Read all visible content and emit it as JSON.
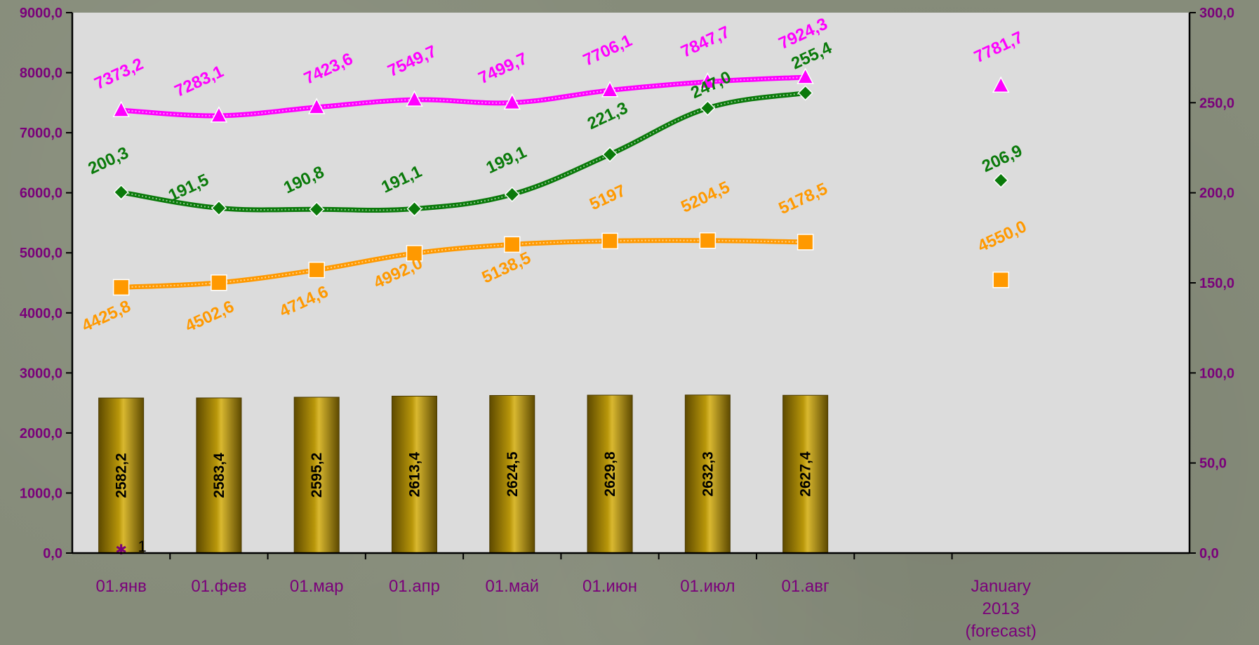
{
  "chart_data": {
    "type": "bar",
    "categories": [
      "01.янв",
      "01.фев",
      "01.мар",
      "01.апр",
      "01.май",
      "01.июн",
      "01.июл",
      "01.авг",
      "",
      [
        "January",
        "2013",
        "(forecast)"
      ]
    ],
    "y_left": {
      "ticks": [
        "0,0",
        "1000,0",
        "2000,0",
        "3000,0",
        "4000,0",
        "5000,0",
        "6000,0",
        "7000,0",
        "8000,0",
        "9000,0"
      ],
      "range": [
        0,
        9000
      ]
    },
    "y_right": {
      "ticks": [
        "0,0",
        "50,0",
        "100,0",
        "150,0",
        "200,0",
        "250,0",
        "300,0"
      ],
      "range": [
        0,
        300
      ]
    },
    "grid": false,
    "colors": {
      "plot_bg": "#dcdcdc",
      "axis": "#000000",
      "tick_text": "#7a007a"
    },
    "series": [
      {
        "type": "bar",
        "axis": "left",
        "color": "#b8960a",
        "values": [
          2582.2,
          2583.4,
          2595.2,
          2613.4,
          2624.5,
          2629.8,
          2632.3,
          2627.4,
          null,
          null
        ],
        "labels": [
          "2582,2",
          "2583,4",
          "2595,2",
          "2613,4",
          "2624,5",
          "2629,8",
          "2632,3",
          "2627,4",
          "",
          ""
        ]
      },
      {
        "type": "line",
        "axis": "left",
        "marker": "triangle",
        "color": "#ff00ff",
        "values": [
          7373.2,
          7283.1,
          7423.6,
          7549.7,
          7499.7,
          7706.1,
          7847.7,
          7924.3,
          null,
          7781.7
        ],
        "labels": [
          "7373,2",
          "7283,1",
          "7423,6",
          "7549,7",
          "7499,7",
          "7706,1",
          "7847,7",
          "7924,3",
          "",
          "7781,7"
        ]
      },
      {
        "type": "line",
        "axis": "right",
        "marker": "diamond",
        "color": "#0a7a0a",
        "values": [
          200.3,
          191.5,
          190.8,
          191.1,
          199.1,
          221.3,
          247.0,
          255.4,
          null,
          206.9
        ],
        "labels": [
          "200,3",
          "191,5",
          "190,8",
          "191,1",
          "199,1",
          "221,3",
          "247,0",
          "255,4",
          "",
          "206,9"
        ]
      },
      {
        "type": "line",
        "axis": "left",
        "marker": "square",
        "color": "#ff9900",
        "values": [
          4425.8,
          4502.6,
          4714.6,
          4992.0,
          5138.5,
          5197,
          5204.5,
          5178.5,
          null,
          4550.0
        ],
        "labels": [
          "4425,8",
          "4502,6",
          "4714,6",
          "4992,0",
          "5138,5",
          "5197",
          "5204,5",
          "5178,5",
          "",
          "4550,0"
        ]
      },
      {
        "type": "marker",
        "axis": "left",
        "marker": "star",
        "color": "#7a007a",
        "values": [
          0,
          null,
          null,
          null,
          null,
          null,
          null,
          null,
          null,
          null
        ],
        "labels": [
          "",
          "1",
          "",
          "",
          "",
          "",
          "",
          "",
          "",
          ""
        ]
      }
    ]
  }
}
